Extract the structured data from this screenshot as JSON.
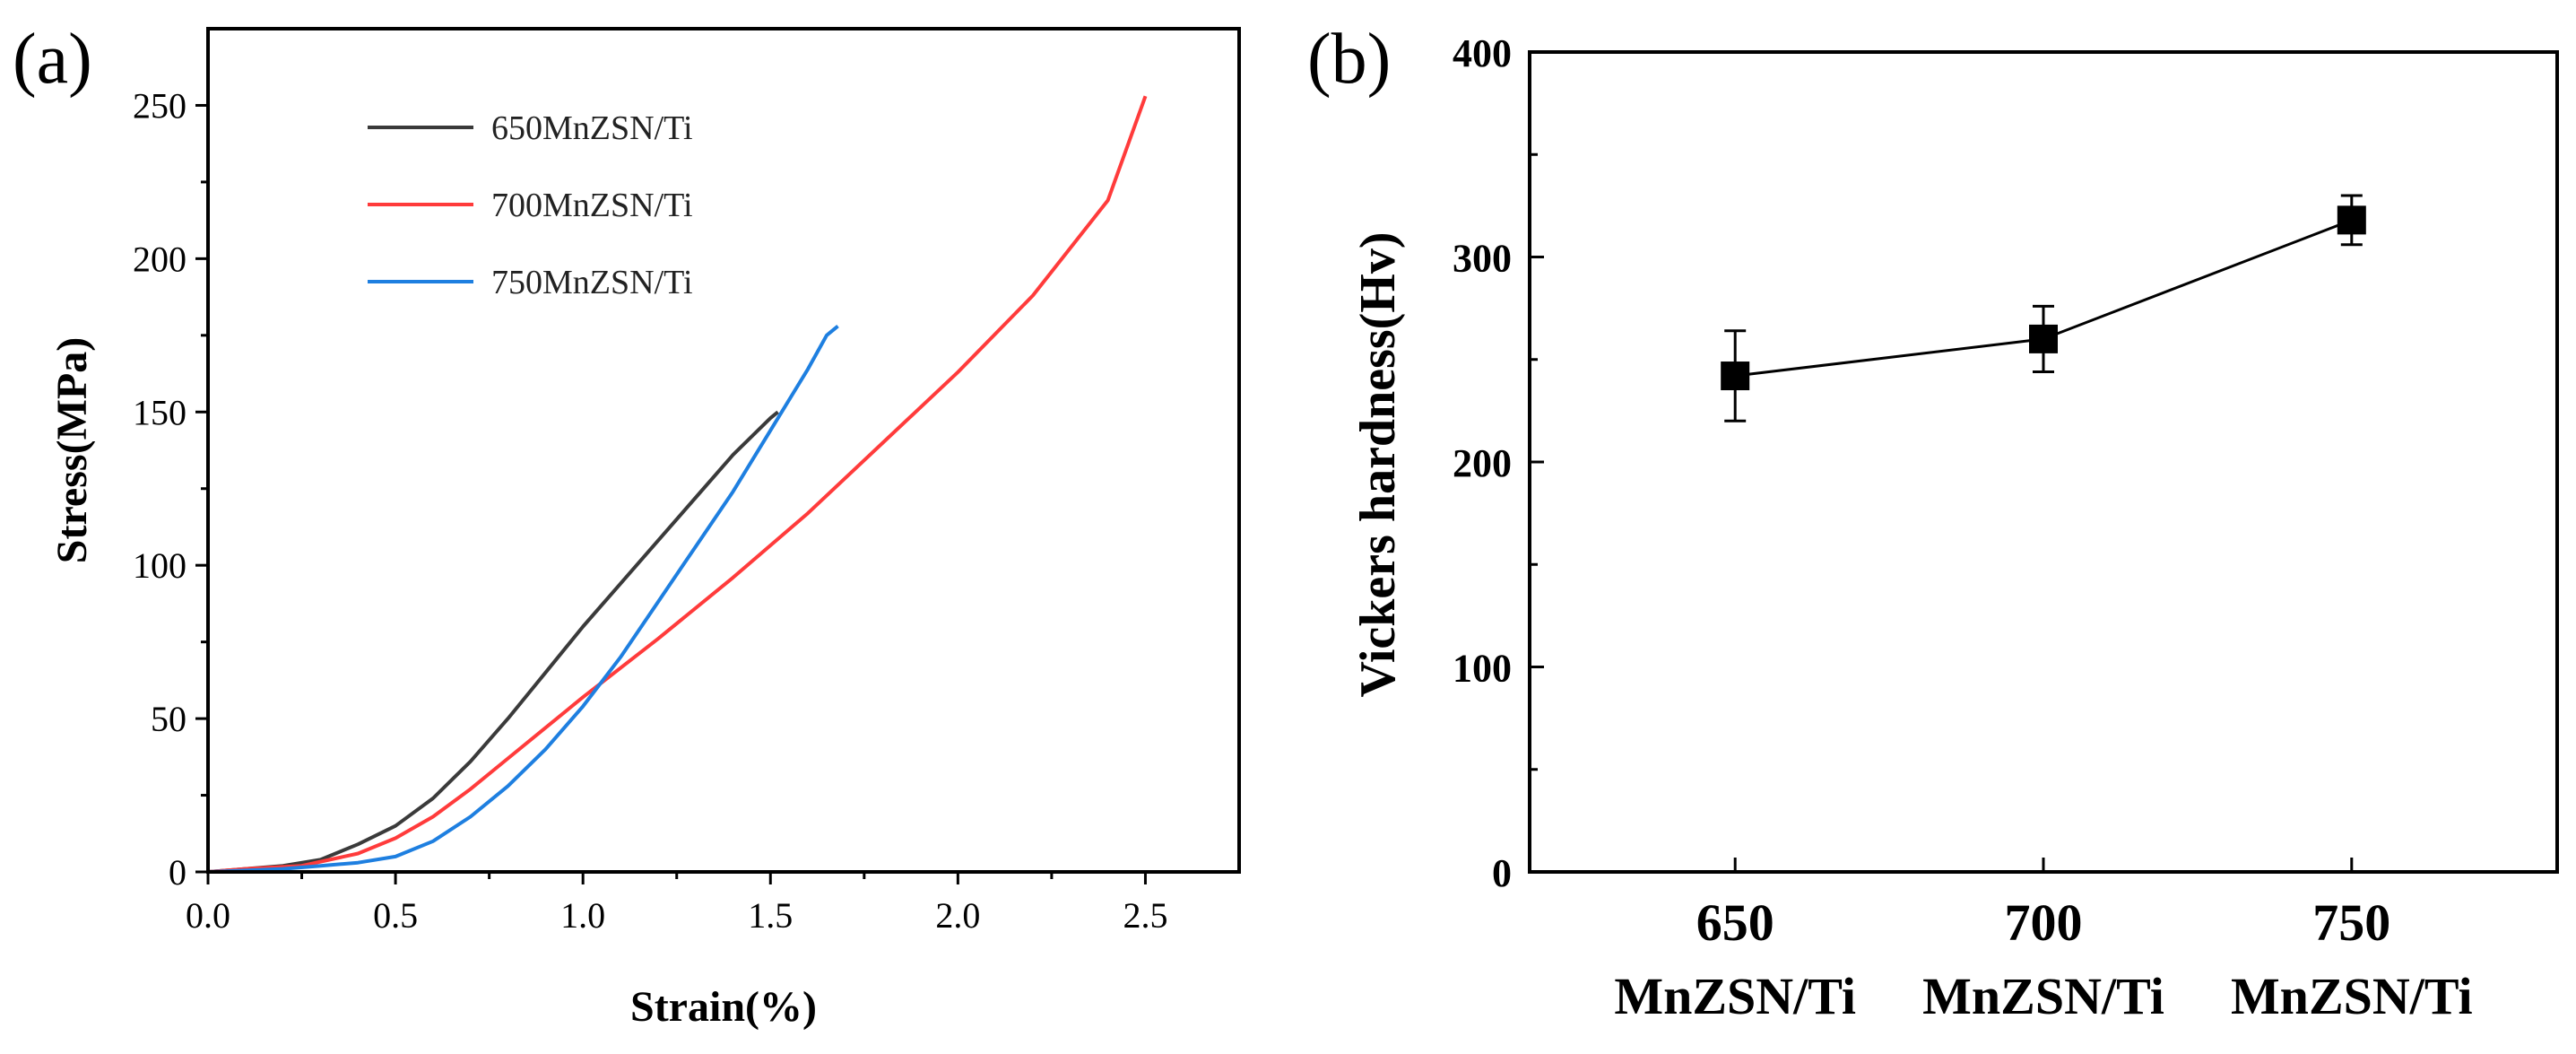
{
  "chart_data": [
    {
      "panel": "(a)",
      "type": "line",
      "xlabel": "Strain(%)",
      "ylabel": "Stress(MPa)",
      "xlim": [
        0.0,
        2.75
      ],
      "ylim": [
        0,
        275
      ],
      "xticks": [
        "0.0",
        "0.5",
        "1.0",
        "1.5",
        "2.0",
        "2.5"
      ],
      "yticks": [
        "0",
        "50",
        "100",
        "150",
        "200",
        "250"
      ],
      "legend_position": "top-left",
      "series": [
        {
          "name": "650MnZSN/Ti",
          "color": "#3a3a3a",
          "x": [
            0.0,
            0.1,
            0.2,
            0.3,
            0.4,
            0.5,
            0.6,
            0.7,
            0.8,
            0.9,
            1.0,
            1.1,
            1.2,
            1.3,
            1.4,
            1.5,
            1.52
          ],
          "y": [
            0,
            1,
            2,
            4,
            9,
            15,
            24,
            36,
            50,
            65,
            80,
            94,
            108,
            122,
            136,
            148,
            150
          ]
        },
        {
          "name": "700MnZSN/Ti",
          "color": "#ff3b3b",
          "x": [
            0.0,
            0.1,
            0.25,
            0.4,
            0.5,
            0.6,
            0.7,
            0.8,
            0.9,
            1.0,
            1.2,
            1.4,
            1.6,
            1.8,
            2.0,
            2.2,
            2.4,
            2.5
          ],
          "y": [
            0,
            1,
            2,
            6,
            11,
            18,
            27,
            37,
            47,
            57,
            76,
            96,
            117,
            140,
            163,
            188,
            219,
            253
          ]
        },
        {
          "name": "750MnZSN/Ti",
          "color": "#1e7fe0",
          "x": [
            0.0,
            0.2,
            0.3,
            0.4,
            0.5,
            0.6,
            0.7,
            0.8,
            0.9,
            1.0,
            1.1,
            1.2,
            1.3,
            1.4,
            1.5,
            1.6,
            1.65,
            1.68
          ],
          "y": [
            0,
            1,
            2,
            3,
            5,
            10,
            18,
            28,
            40,
            54,
            70,
            88,
            106,
            124,
            144,
            164,
            175,
            178
          ]
        }
      ]
    },
    {
      "panel": "(b)",
      "type": "line",
      "ylabel": "Vickers hardness(Hv)",
      "ylim": [
        0,
        400
      ],
      "yticks": [
        "0",
        "100",
        "200",
        "300",
        "400"
      ],
      "categories": [
        {
          "top": "650",
          "bottom": "MnZSN/Ti"
        },
        {
          "top": "700",
          "bottom": "MnZSN/Ti"
        },
        {
          "top": "750",
          "bottom": "MnZSN/Ti"
        }
      ],
      "values": [
        242,
        260,
        318
      ],
      "errors": [
        22,
        16,
        12
      ],
      "color": "#000000"
    }
  ]
}
